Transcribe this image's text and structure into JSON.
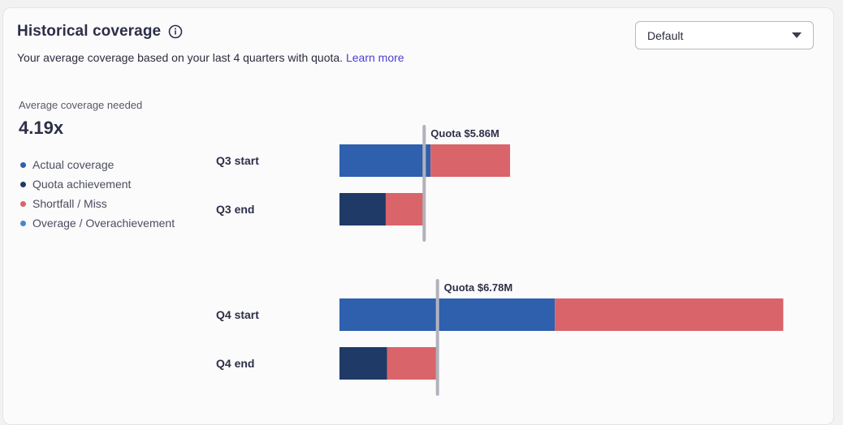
{
  "header": {
    "title": "Historical coverage",
    "subtitle": "Your average coverage based on your last 4 quarters with quota.",
    "learn_more": "Learn more"
  },
  "dropdown": {
    "selected": "Default"
  },
  "summary": {
    "label": "Average coverage needed",
    "value": "4.19x"
  },
  "legend": [
    {
      "label": "Actual coverage",
      "color": "#2e60ad"
    },
    {
      "label": "Quota achievement",
      "color": "#1f3a66"
    },
    {
      "label": "Shortfall / Miss",
      "color": "#d9646a"
    },
    {
      "label": "Overage / Overachievement",
      "color": "#4a86cf"
    }
  ],
  "chart_data": {
    "type": "bar",
    "orientation": "horizontal",
    "unit": "$M",
    "groups": [
      {
        "quota_label": "Quota $5.86M",
        "quota": 5.86,
        "rows": [
          {
            "label": "Q3 start",
            "segments": [
              {
                "series": "Actual coverage",
                "value": 6.3
              },
              {
                "series": "Shortfall / Miss",
                "value": 5.5
              }
            ]
          },
          {
            "label": "Q3 end",
            "segments": [
              {
                "series": "Quota achievement",
                "value": 3.2
              },
              {
                "series": "Shortfall / Miss",
                "value": 2.66
              }
            ]
          }
        ]
      },
      {
        "quota_label": "Quota $6.78M",
        "quota": 6.78,
        "rows": [
          {
            "label": "Q4 start",
            "segments": [
              {
                "series": "Actual coverage",
                "value": 14.9
              },
              {
                "series": "Shortfall / Miss",
                "value": 15.8
              }
            ]
          },
          {
            "label": "Q4 end",
            "segments": [
              {
                "series": "Quota achievement",
                "value": 3.3
              },
              {
                "series": "Shortfall / Miss",
                "value": 3.48
              }
            ]
          }
        ]
      }
    ]
  }
}
